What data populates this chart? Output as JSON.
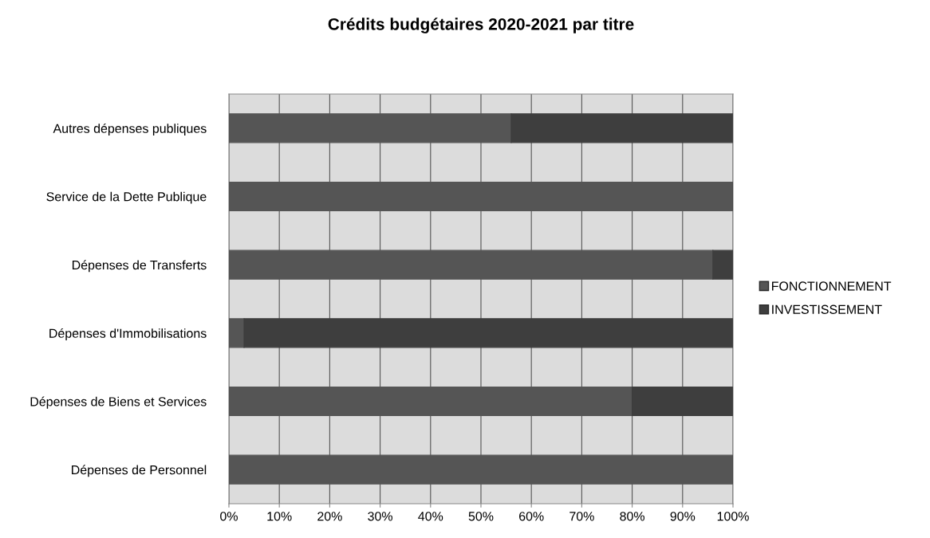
{
  "chart_data": {
    "type": "bar",
    "orientation": "horizontal",
    "stacked": true,
    "title": "Crédits budgétaires 2020-2021 par titre",
    "categories": [
      "Autres dépenses publiques",
      "Service de la Dette Publique",
      "Dépenses de Transferts",
      "Dépenses d'Immobilisations",
      "Dépenses de Biens et Services",
      "Dépenses de Personnel"
    ],
    "series": [
      {
        "name": "FONCTIONNEMENT",
        "color": "#555555",
        "values": [
          56,
          100,
          96,
          3,
          80,
          100
        ]
      },
      {
        "name": "INVESTISSEMENT",
        "color": "#3e3e3e",
        "values": [
          44,
          0,
          4,
          97,
          20,
          0
        ]
      }
    ],
    "xlim": [
      0,
      100
    ],
    "xticks": [
      {
        "value": 0,
        "label": "0%"
      },
      {
        "value": 10,
        "label": "10%"
      },
      {
        "value": 20,
        "label": "20%"
      },
      {
        "value": 30,
        "label": "30%"
      },
      {
        "value": 40,
        "label": "40%"
      },
      {
        "value": 50,
        "label": "50%"
      },
      {
        "value": 60,
        "label": "60%"
      },
      {
        "value": 70,
        "label": "70%"
      },
      {
        "value": 80,
        "label": "80%"
      },
      {
        "value": 90,
        "label": "90%"
      },
      {
        "value": 100,
        "label": "100%"
      }
    ],
    "grid": "x",
    "legend": "right"
  }
}
